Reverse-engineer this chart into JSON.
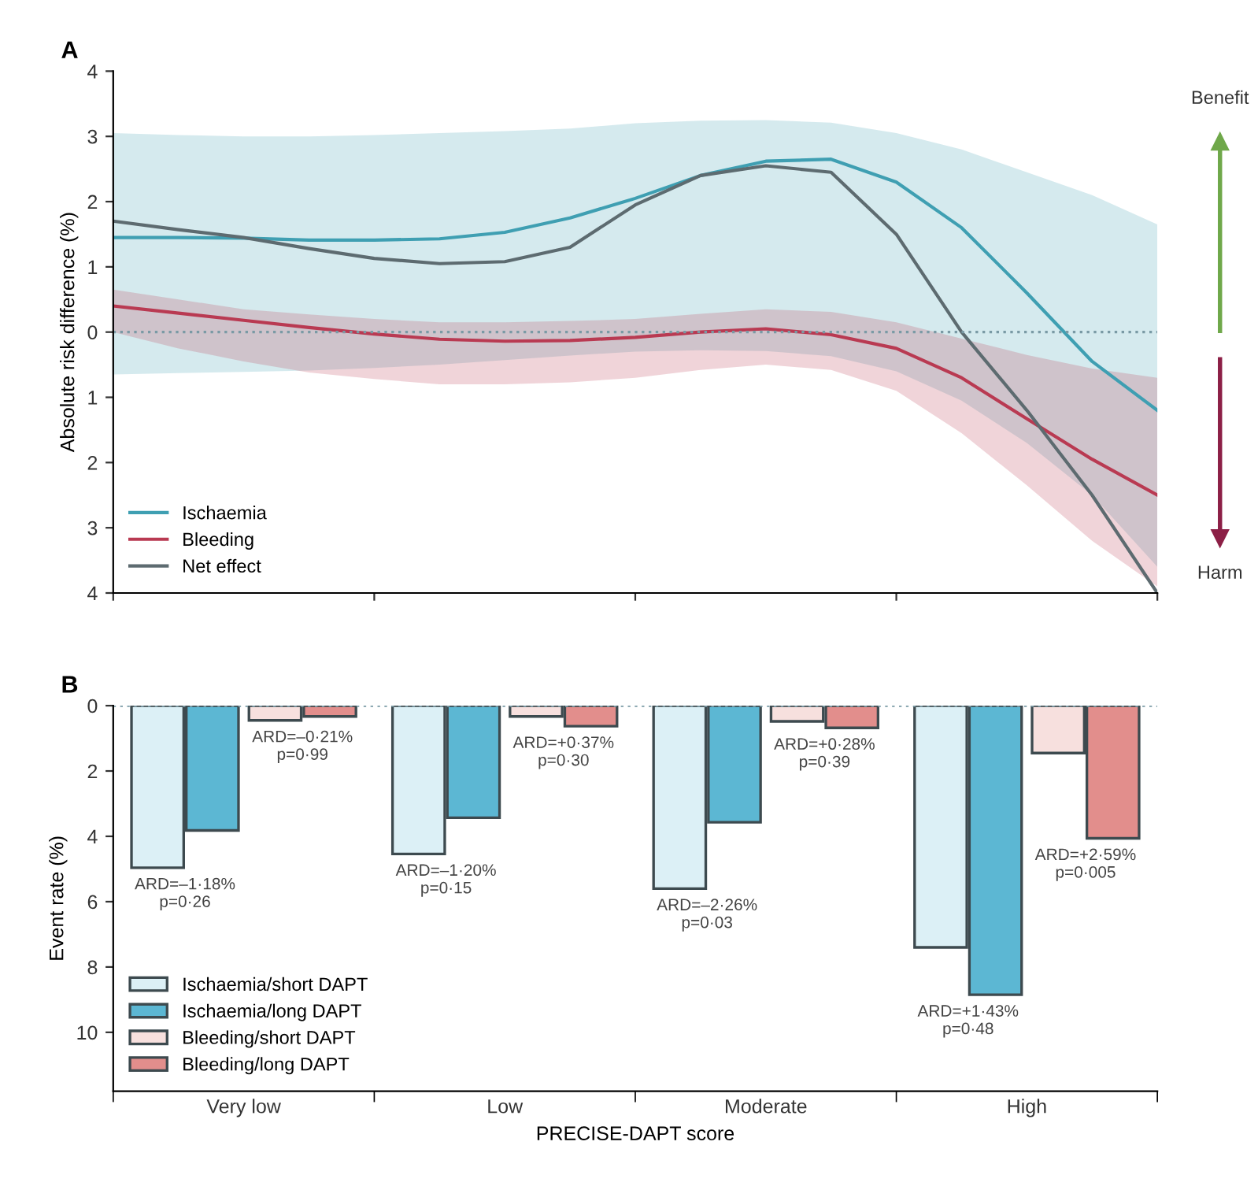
{
  "chart_data": [
    {
      "type": "line",
      "title": "A",
      "ylabel": "Absolute risk difference (%)",
      "categories": [
        null,
        null,
        null,
        null,
        null,
        null,
        null,
        null,
        null,
        null,
        null,
        null,
        null,
        null,
        null,
        null,
        null
      ],
      "ylim": [
        -4,
        4
      ],
      "yticks": [
        {
          "value": -4,
          "label": "4"
        },
        {
          "value": -3,
          "label": "3"
        },
        {
          "value": -2,
          "label": "2"
        },
        {
          "value": -1,
          "label": "1"
        },
        0,
        1,
        2,
        3,
        4
      ],
      "tick_labels": "y",
      "legend": "bottom left",
      "line_style": "solid",
      "grid": false,
      "ref_lines": [
        {
          "axis": "y",
          "value": 0,
          "line_style": "dotted",
          "color": "#7a9aa5"
        }
      ],
      "annotations": [
        "Benefit",
        "Harm"
      ],
      "series": [
        {
          "name": "Ischaemia",
          "color": "#3f9fb2",
          "values": [
            1.45,
            1.45,
            1.44,
            1.41,
            1.41,
            1.43,
            1.53,
            1.75,
            2.05,
            2.4,
            2.62,
            2.65,
            2.3,
            1.6,
            0.6,
            -0.45,
            -1.2
          ],
          "upper": [
            3.05,
            3.02,
            3.0,
            3.0,
            3.02,
            3.05,
            3.08,
            3.12,
            3.2,
            3.24,
            3.25,
            3.21,
            3.05,
            2.8,
            2.45,
            2.1,
            1.65
          ],
          "lower": [
            -0.65,
            -0.63,
            -0.61,
            -0.59,
            -0.55,
            -0.5,
            -0.43,
            -0.36,
            -0.3,
            -0.28,
            -0.29,
            -0.37,
            -0.6,
            -1.05,
            -1.7,
            -2.5,
            -3.6
          ]
        },
        {
          "name": "Bleeding",
          "color": "#b93a52",
          "values": [
            0.4,
            0.29,
            0.18,
            0.07,
            -0.03,
            -0.11,
            -0.14,
            -0.13,
            -0.08,
            0.0,
            0.05,
            -0.04,
            -0.25,
            -0.7,
            -1.33,
            -1.95,
            -2.5
          ],
          "upper": [
            0.65,
            0.5,
            0.35,
            0.27,
            0.2,
            0.15,
            0.15,
            0.17,
            0.2,
            0.28,
            0.35,
            0.31,
            0.15,
            -0.1,
            -0.35,
            -0.56,
            -0.7
          ],
          "lower": [
            0.0,
            -0.25,
            -0.45,
            -0.62,
            -0.72,
            -0.8,
            -0.8,
            -0.77,
            -0.7,
            -0.58,
            -0.5,
            -0.58,
            -0.9,
            -1.55,
            -2.35,
            -3.2,
            -3.9
          ]
        },
        {
          "name": "Net effect",
          "color": "#5d6b70",
          "values": [
            1.7,
            1.57,
            1.45,
            1.28,
            1.13,
            1.05,
            1.08,
            1.3,
            1.95,
            2.4,
            2.55,
            2.45,
            1.5,
            0,
            -1.2,
            -2.5,
            -4.0
          ]
        }
      ]
    },
    {
      "type": "bar",
      "title": "B",
      "ylabel": "Event rate (%)",
      "xlabel": "PRECISE-DAPT score",
      "categories": [
        "Very low",
        "Low",
        "Moderate",
        "High"
      ],
      "ylim": [
        11.8,
        0
      ],
      "yticks": [
        0,
        2,
        4,
        6,
        8,
        10
      ],
      "legend": "bottom left",
      "grid": false,
      "ref_lines": [
        {
          "axis": "y",
          "value": 0,
          "line_style": "dotted",
          "color": "#7a9aa5"
        }
      ],
      "annotations": [
        "ARD=–1·18%\np=0·26",
        "ARD=–0·21%\np=0·99",
        "ARD=–1·20%\np=0·15",
        "ARD=+0·37%\np=0·30",
        "ARD=–2·26%\np=0·03",
        "ARD=+0·28%\np=0·39",
        "ARD=+1·43%\np=0·48",
        "ARD=+2·59%\np=0·005"
      ],
      "series": [
        {
          "name": "Ischaemia/short DAPT",
          "color": "#dcf0f6",
          "values": [
            4.96,
            4.54,
            5.6,
            7.4
          ]
        },
        {
          "name": "Ischaemia/long DAPT",
          "color": "#5cb7d3",
          "values": [
            3.82,
            3.43,
            3.57,
            8.85
          ]
        },
        {
          "name": "Bleeding/short DAPT",
          "color": "#f7e0de",
          "values": [
            0.45,
            0.33,
            0.48,
            1.45
          ]
        },
        {
          "name": "Bleeding/long DAPT",
          "color": "#e28e8c",
          "values": [
            0.33,
            0.63,
            0.68,
            4.06
          ]
        }
      ]
    }
  ]
}
